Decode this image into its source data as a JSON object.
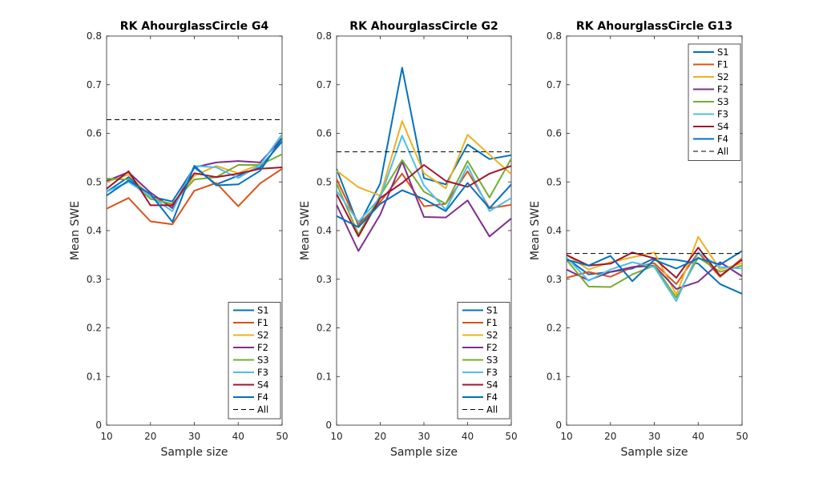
{
  "chart_data": [
    {
      "type": "line",
      "title": "RK AhourglassCircle G4",
      "xlabel": "Sample size",
      "ylabel": "Mean SWE",
      "xlim": [
        10,
        50
      ],
      "ylim": [
        0,
        0.8
      ],
      "xticks": [
        "10",
        "20",
        "30",
        "40",
        "50"
      ],
      "yticks": [
        "0",
        "0.1",
        "0.2",
        "0.3",
        "0.4",
        "0.5",
        "0.6",
        "0.7",
        "0.8"
      ],
      "x": [
        10,
        15,
        20,
        25,
        30,
        35,
        40,
        45,
        50
      ],
      "legend_position": "bottom-right",
      "series": [
        {
          "name": "S1",
          "color": "#0072BD",
          "values": [
            0.48,
            0.51,
            0.47,
            0.46,
            0.53,
            0.495,
            0.513,
            0.53,
            0.583
          ]
        },
        {
          "name": "F1",
          "color": "#D95319",
          "values": [
            0.445,
            0.467,
            0.419,
            0.413,
            0.482,
            0.498,
            0.45,
            0.497,
            0.527
          ]
        },
        {
          "name": "S2",
          "color": "#EDB120",
          "values": [
            0.5,
            0.515,
            0.47,
            0.45,
            0.513,
            0.533,
            0.518,
            0.537,
            0.593
          ]
        },
        {
          "name": "F2",
          "color": "#7E2F8E",
          "values": [
            0.502,
            0.52,
            0.478,
            0.446,
            0.53,
            0.54,
            0.543,
            0.54,
            0.59
          ]
        },
        {
          "name": "S3",
          "color": "#77AC30",
          "values": [
            0.507,
            0.505,
            0.465,
            0.455,
            0.505,
            0.51,
            0.535,
            0.535,
            0.557
          ]
        },
        {
          "name": "F3",
          "color": "#4DBEEE",
          "values": [
            0.48,
            0.5,
            0.47,
            0.44,
            0.533,
            0.53,
            0.508,
            0.535,
            0.598
          ]
        },
        {
          "name": "S4",
          "color": "#A2142F",
          "values": [
            0.486,
            0.522,
            0.452,
            0.452,
            0.518,
            0.51,
            0.517,
            0.527,
            0.53
          ]
        },
        {
          "name": "F4",
          "color": "#0072BD",
          "values": [
            0.472,
            0.503,
            0.475,
            0.418,
            0.533,
            0.493,
            0.495,
            0.523,
            0.59
          ]
        },
        {
          "name": "All",
          "color": "#000000",
          "dashed": true,
          "values": [
            0.628,
            0.628,
            0.628,
            0.628,
            0.628,
            0.628,
            0.628,
            0.628,
            0.628
          ]
        }
      ]
    },
    {
      "type": "line",
      "title": "RK AhourglassCircle G2",
      "xlabel": "Sample size",
      "ylabel": "Mean SWE",
      "xlim": [
        10,
        50
      ],
      "ylim": [
        0,
        0.8
      ],
      "xticks": [
        "10",
        "20",
        "30",
        "40",
        "50"
      ],
      "yticks": [
        "0",
        "0.1",
        "0.2",
        "0.3",
        "0.4",
        "0.5",
        "0.6",
        "0.7",
        "0.8"
      ],
      "x": [
        10,
        15,
        20,
        25,
        30,
        35,
        40,
        45,
        50
      ],
      "legend_position": "bottom-right",
      "series": [
        {
          "name": "S1",
          "color": "#0072BD",
          "values": [
            0.527,
            0.41,
            0.497,
            0.735,
            0.508,
            0.495,
            0.577,
            0.547,
            0.555
          ]
        },
        {
          "name": "F1",
          "color": "#D95319",
          "values": [
            0.506,
            0.412,
            0.459,
            0.517,
            0.45,
            0.455,
            0.522,
            0.446,
            0.453
          ]
        },
        {
          "name": "S2",
          "color": "#EDB120",
          "values": [
            0.523,
            0.489,
            0.472,
            0.625,
            0.518,
            0.487,
            0.597,
            0.556,
            0.516
          ]
        },
        {
          "name": "F2",
          "color": "#7E2F8E",
          "values": [
            0.453,
            0.358,
            0.433,
            0.542,
            0.428,
            0.427,
            0.462,
            0.388,
            0.425
          ]
        },
        {
          "name": "S3",
          "color": "#77AC30",
          "values": [
            0.497,
            0.392,
            0.472,
            0.545,
            0.48,
            0.455,
            0.543,
            0.468,
            0.548
          ]
        },
        {
          "name": "F3",
          "color": "#4DBEEE",
          "values": [
            0.482,
            0.418,
            0.468,
            0.595,
            0.493,
            0.443,
            0.533,
            0.44,
            0.467
          ]
        },
        {
          "name": "S4",
          "color": "#A2142F",
          "values": [
            0.475,
            0.388,
            0.467,
            0.498,
            0.535,
            0.502,
            0.49,
            0.517,
            0.533
          ]
        },
        {
          "name": "F4",
          "color": "#0072BD",
          "values": [
            0.43,
            0.407,
            0.455,
            0.483,
            0.465,
            0.44,
            0.498,
            0.446,
            0.495
          ]
        },
        {
          "name": "All",
          "color": "#000000",
          "dashed": true,
          "values": [
            0.562,
            0.562,
            0.562,
            0.562,
            0.562,
            0.562,
            0.562,
            0.562,
            0.562
          ]
        }
      ]
    },
    {
      "type": "line",
      "title": "RK AhourglassCircle G13",
      "xlabel": "Sample size",
      "ylabel": "Mean SWE",
      "xlim": [
        10,
        50
      ],
      "ylim": [
        0,
        0.8
      ],
      "xticks": [
        "10",
        "20",
        "30",
        "40",
        "50"
      ],
      "yticks": [
        "0",
        "0.1",
        "0.2",
        "0.3",
        "0.4",
        "0.5",
        "0.6",
        "0.7",
        "0.8"
      ],
      "x": [
        10,
        15,
        20,
        25,
        30,
        35,
        40,
        45,
        50
      ],
      "legend_position": "top-right",
      "series": [
        {
          "name": "S1",
          "color": "#0072BD",
          "values": [
            0.343,
            0.31,
            0.315,
            0.322,
            0.343,
            0.34,
            0.332,
            0.29,
            0.27
          ]
        },
        {
          "name": "F1",
          "color": "#D95319",
          "values": [
            0.303,
            0.315,
            0.305,
            0.325,
            0.333,
            0.29,
            0.355,
            0.305,
            0.343
          ]
        },
        {
          "name": "S2",
          "color": "#EDB120",
          "values": [
            0.35,
            0.32,
            0.335,
            0.345,
            0.355,
            0.268,
            0.387,
            0.32,
            0.333
          ]
        },
        {
          "name": "F2",
          "color": "#7E2F8E",
          "values": [
            0.32,
            0.298,
            0.315,
            0.325,
            0.328,
            0.28,
            0.295,
            0.335,
            0.306
          ]
        },
        {
          "name": "S3",
          "color": "#77AC30",
          "values": [
            0.34,
            0.285,
            0.284,
            0.31,
            0.328,
            0.262,
            0.345,
            0.315,
            0.328
          ]
        },
        {
          "name": "F3",
          "color": "#4DBEEE",
          "values": [
            0.345,
            0.297,
            0.32,
            0.335,
            0.325,
            0.255,
            0.355,
            0.325,
            0.322
          ]
        },
        {
          "name": "S4",
          "color": "#A2142F",
          "values": [
            0.35,
            0.328,
            0.332,
            0.355,
            0.343,
            0.303,
            0.365,
            0.307,
            0.34
          ]
        },
        {
          "name": "F4",
          "color": "#0072BD",
          "values": [
            0.34,
            0.328,
            0.348,
            0.296,
            0.34,
            0.322,
            0.343,
            0.33,
            0.358
          ]
        },
        {
          "name": "All",
          "color": "#000000",
          "dashed": true,
          "values": [
            0.353,
            0.353,
            0.353,
            0.353,
            0.353,
            0.353,
            0.353,
            0.353,
            0.353
          ]
        }
      ]
    }
  ]
}
